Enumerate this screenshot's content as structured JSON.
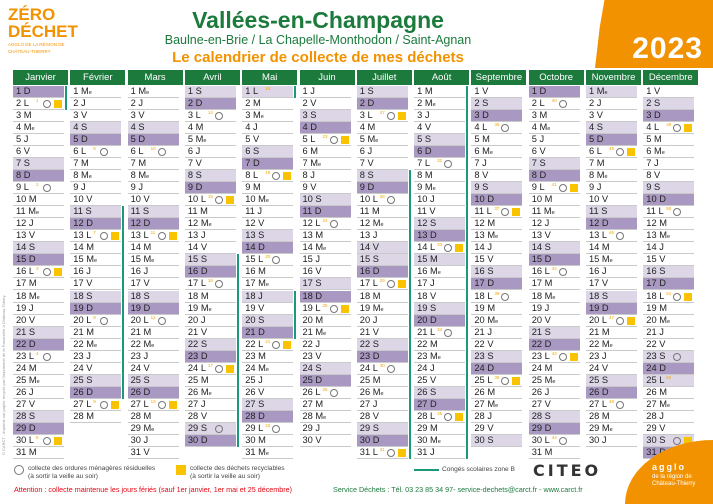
{
  "logo": {
    "line1": "ZÉRO",
    "line2": "DÉCHET",
    "line3": "AGGLO DE LA RÉGION DE",
    "line4": "CHÂTEAU-THIERRY"
  },
  "header": {
    "title": "Vallées-en-Champagne",
    "subtitle": "Baulne-en-Brie / La Chapelle-Monthodon / Saint-Agnan",
    "tagline": "Le calendrier de collecte de mes déchets",
    "year": "2023"
  },
  "weekday_letters": [
    "L",
    "M",
    "Me",
    "J",
    "V",
    "S",
    "D"
  ],
  "colors": {
    "green": "#1c7a3d",
    "orange": "#f39200",
    "yellow": "#f9c300",
    "teal": "#1a9a7a",
    "saturday": "#dcd6e6",
    "sunday": "#a999c2"
  },
  "months": [
    {
      "name": "Janvier",
      "days": 31,
      "start": 6,
      "collections": [
        [
          2,
          1,
          "OR"
        ],
        [
          9,
          2,
          "O"
        ],
        [
          16,
          3,
          "OR"
        ],
        [
          23,
          4,
          "O"
        ],
        [
          30,
          5,
          "OR"
        ]
      ],
      "holidays": [],
      "school": [
        [
          1,
          2
        ]
      ]
    },
    {
      "name": "Février",
      "days": 28,
      "start": 2,
      "collections": [
        [
          6,
          6,
          "O"
        ],
        [
          13,
          7,
          "OR"
        ],
        [
          20,
          8,
          "O"
        ],
        [
          27,
          9,
          "OR"
        ]
      ],
      "holidays": [],
      "school": [
        [
          11,
          26
        ]
      ]
    },
    {
      "name": "Mars",
      "days": 31,
      "start": 2,
      "collections": [
        [
          6,
          10,
          "O"
        ],
        [
          13,
          11,
          "OR"
        ],
        [
          20,
          12,
          "O"
        ],
        [
          27,
          13,
          "OR"
        ]
      ],
      "holidays": [],
      "school": []
    },
    {
      "name": "Avril",
      "days": 30,
      "start": 5,
      "collections": [
        [
          3,
          14,
          "O"
        ],
        [
          10,
          15,
          "OR"
        ],
        [
          17,
          16,
          "O"
        ],
        [
          24,
          17,
          "OR"
        ],
        [
          29,
          null,
          "O"
        ]
      ],
      "holidays": [],
      "school": [
        [
          15,
          30
        ]
      ]
    },
    {
      "name": "Mai",
      "days": 31,
      "start": 0,
      "collections": [
        [
          1,
          18,
          ""
        ],
        [
          8,
          19,
          "OR"
        ],
        [
          15,
          20,
          "O"
        ],
        [
          22,
          21,
          "OR"
        ],
        [
          29,
          22,
          "O"
        ]
      ],
      "holidays": [
        1,
        18
      ],
      "school": [
        [
          1,
          1
        ],
        [
          18,
          21
        ]
      ]
    },
    {
      "name": "Juin",
      "days": 30,
      "start": 3,
      "collections": [
        [
          5,
          23,
          "OR"
        ],
        [
          12,
          24,
          "O"
        ],
        [
          19,
          25,
          "OR"
        ],
        [
          26,
          26,
          "O"
        ]
      ],
      "holidays": [],
      "school": []
    },
    {
      "name": "Juillet",
      "days": 31,
      "start": 5,
      "collections": [
        [
          3,
          27,
          "OR"
        ],
        [
          10,
          28,
          "O"
        ],
        [
          17,
          29,
          "OR"
        ],
        [
          24,
          30,
          "O"
        ],
        [
          31,
          31,
          "OR"
        ]
      ],
      "holidays": [
        14
      ],
      "school": [
        [
          8,
          31
        ]
      ]
    },
    {
      "name": "Août",
      "days": 31,
      "start": 1,
      "collections": [
        [
          7,
          32,
          "O"
        ],
        [
          14,
          33,
          "OR"
        ],
        [
          21,
          34,
          "O"
        ],
        [
          28,
          35,
          "OR"
        ]
      ],
      "holidays": [
        15
      ],
      "school": [
        [
          1,
          31
        ]
      ]
    },
    {
      "name": "Septembre",
      "days": 30,
      "start": 4,
      "collections": [
        [
          4,
          36,
          "O"
        ],
        [
          11,
          37,
          "OR"
        ],
        [
          18,
          38,
          "O"
        ],
        [
          25,
          39,
          "OR"
        ]
      ],
      "holidays": [],
      "school": []
    },
    {
      "name": "Octobre",
      "days": 31,
      "start": 6,
      "collections": [
        [
          2,
          40,
          "O"
        ],
        [
          9,
          41,
          "OR"
        ],
        [
          16,
          42,
          "O"
        ],
        [
          23,
          43,
          "OR"
        ],
        [
          30,
          44,
          "O"
        ]
      ],
      "holidays": [],
      "school": []
    },
    {
      "name": "Novembre",
      "days": 30,
      "start": 2,
      "collections": [
        [
          6,
          45,
          "OR"
        ],
        [
          13,
          46,
          "O"
        ],
        [
          20,
          47,
          "OR"
        ],
        [
          27,
          48,
          "O"
        ]
      ],
      "holidays": [
        1
      ],
      "school": []
    },
    {
      "name": "Décembre",
      "days": 31,
      "start": 4,
      "collections": [
        [
          4,
          49,
          "OR"
        ],
        [
          11,
          50,
          "O"
        ],
        [
          18,
          51,
          "OR"
        ],
        [
          23,
          null,
          "O"
        ],
        [
          25,
          52,
          ""
        ],
        [
          30,
          null,
          "OR"
        ]
      ],
      "holidays": [
        25
      ],
      "school": []
    }
  ],
  "legend": {
    "ordures": "collecte des ordures ménagères résiduelles",
    "ordures_note": "(à sortir la veille au soir)",
    "recyclables": "collecte des déchets recyclables",
    "recyclables_note": "(à sortir la veille au soir)",
    "school": "Congés scolaires zone B"
  },
  "footer": {
    "attention": "Attention : collecte maintenue les jours fériés (sauf 1er janvier, 1er mai et 25 décembre)",
    "service": "Service Déchets : Tél. 03 23 85 34 97- service-dechets@carct.fr - www.carct.fr",
    "citeo": "CITEO",
    "agglo": "agglo",
    "agglo_sub": "de la région de Château-Thierry",
    "copyright": "© CARCT - Imprimé sur papier recyclé par l'imprimerie de la Passerelle à Château-Thierry"
  }
}
